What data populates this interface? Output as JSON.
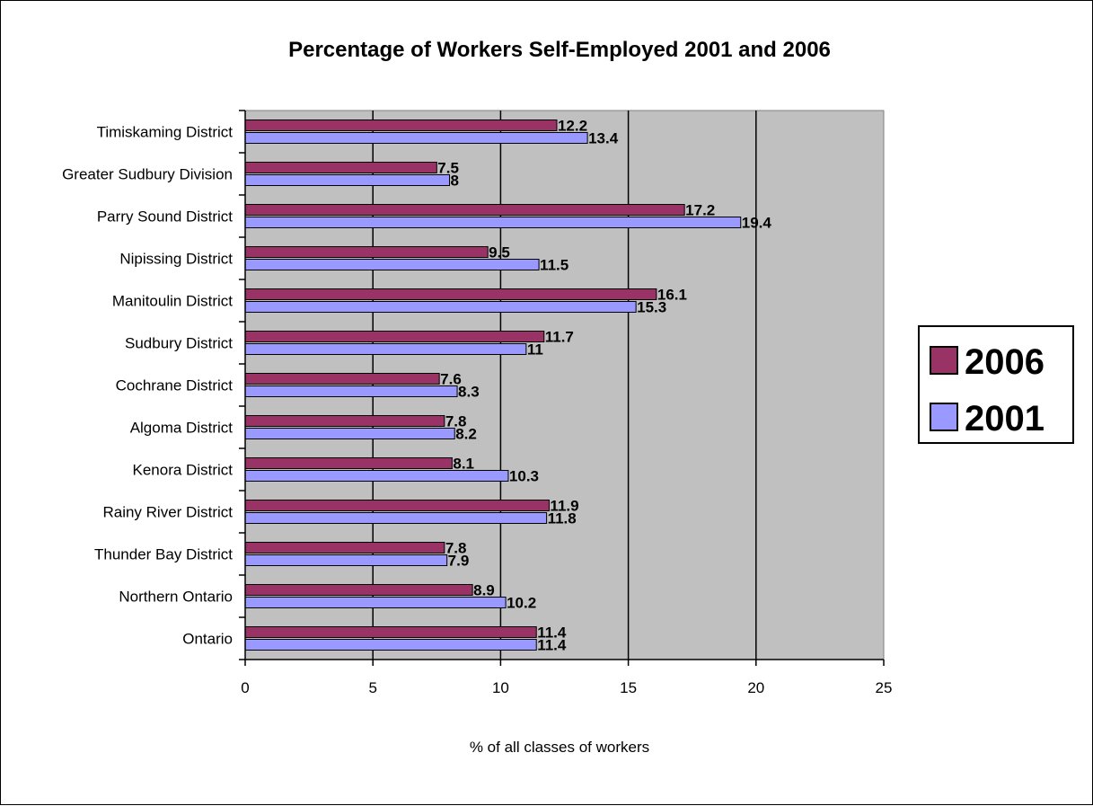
{
  "chart_data": {
    "type": "bar",
    "orientation": "horizontal",
    "title": "Percentage of Workers Self-Employed 2001 and 2006",
    "xlabel": "% of all classes of workers",
    "ylabel": "",
    "xlim": [
      0,
      25
    ],
    "x_ticks": [
      "0",
      "5",
      "10",
      "15",
      "20",
      "25"
    ],
    "x_tick_values": [
      0,
      5,
      10,
      15,
      20,
      25
    ],
    "grid": "vertical major gridlines",
    "plot_background": "#c0c0c0",
    "legend_position": "right",
    "categories": [
      "Timiskaming District",
      "Greater Sudbury Division",
      "Parry Sound District",
      "Nipissing District",
      "Manitoulin District",
      "Sudbury District",
      "Cochrane District",
      "Algoma District",
      "Kenora District",
      "Rainy River District",
      "Thunder Bay District",
      "Northern Ontario",
      "Ontario"
    ],
    "series": [
      {
        "name": "2006",
        "color": "#993366",
        "values": [
          12.2,
          7.5,
          17.2,
          9.5,
          16.1,
          11.7,
          7.6,
          7.8,
          8.1,
          11.9,
          7.8,
          8.9,
          11.4
        ],
        "labels": [
          "12.2",
          "7.5",
          "17.2",
          "9.5",
          "16.1",
          "11.7",
          "7.6",
          "7.8",
          "8.1",
          "11.9",
          "7.8",
          "8.9",
          "11.4"
        ]
      },
      {
        "name": "2001",
        "color": "#9999ff",
        "values": [
          13.4,
          8,
          19.4,
          11.5,
          15.3,
          11,
          8.3,
          8.2,
          10.3,
          11.8,
          7.9,
          10.2,
          11.4
        ],
        "labels": [
          "13.4",
          "8",
          "19.4",
          "11.5",
          "15.3",
          "11",
          "8.3",
          "8.2",
          "10.3",
          "11.8",
          "7.9",
          "10.2",
          "11.4"
        ]
      }
    ]
  }
}
